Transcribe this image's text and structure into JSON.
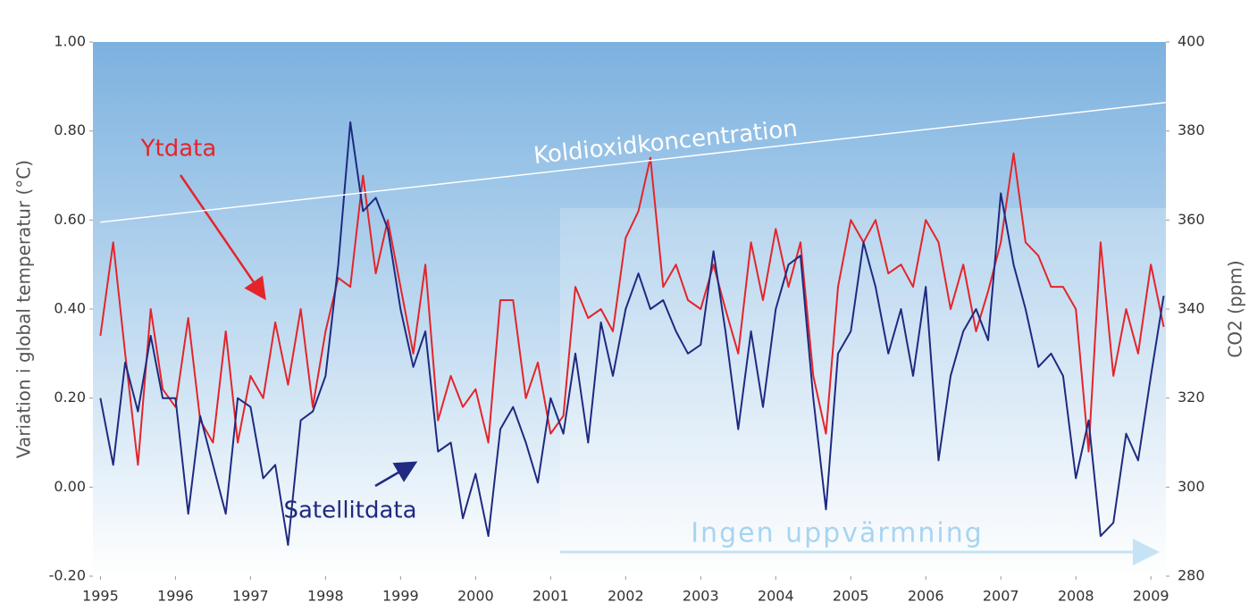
{
  "chart_data": {
    "type": "line",
    "ylabel": "Variation i global temperatur (°C)",
    "y2label": "CO2 (ppm)",
    "annotations": [
      "Ytdata",
      "Satellitdata",
      "Koldioxidkoncentration",
      "Ingen uppvärmning"
    ],
    "xlim": [
      1994.9,
      2009.2
    ],
    "xticks": [
      1995,
      1996,
      1997,
      1998,
      1999,
      2000,
      2001,
      2002,
      2003,
      2004,
      2005,
      2006,
      2007,
      2008,
      2009
    ],
    "ylim": [
      -0.2,
      1.0
    ],
    "yticks": [
      {
        "value": -0.2,
        "label": "-0.20"
      },
      {
        "value": 0,
        "label": "0.00"
      },
      {
        "value": 0.2,
        "label": "0.20"
      },
      {
        "value": 0.4,
        "label": "0.40"
      },
      {
        "value": 0.6,
        "label": "0.60"
      },
      {
        "value": 0.8,
        "label": "0.80"
      },
      {
        "value": 1.0,
        "label": "1.00"
      }
    ],
    "y2lim": [
      280,
      400
    ],
    "y2ticks": [
      280,
      300,
      320,
      340,
      360,
      380,
      400
    ],
    "grid": false,
    "x": [
      1995,
      1995.17,
      1995.33,
      1995.5,
      1995.67,
      1995.83,
      1996,
      1996.17,
      1996.33,
      1996.5,
      1996.67,
      1996.83,
      1997,
      1997.17,
      1997.33,
      1997.5,
      1997.67,
      1997.83,
      1998,
      1998.17,
      1998.33,
      1998.5,
      1998.67,
      1998.83,
      1999,
      1999.17,
      1999.33,
      1999.5,
      1999.67,
      1999.83,
      2000,
      2000.17,
      2000.33,
      2000.5,
      2000.67,
      2000.83,
      2001,
      2001.17,
      2001.33,
      2001.5,
      2001.67,
      2001.83,
      2002,
      2002.17,
      2002.33,
      2002.5,
      2002.67,
      2002.83,
      2003,
      2003.17,
      2003.33,
      2003.5,
      2003.67,
      2003.83,
      2004,
      2004.17,
      2004.33,
      2004.5,
      2004.67,
      2004.83,
      2005,
      2005.17,
      2005.33,
      2005.5,
      2005.67,
      2005.83,
      2006,
      2006.17,
      2006.33,
      2006.5,
      2006.67,
      2006.83,
      2007,
      2007.17,
      2007.33,
      2007.5,
      2007.67,
      2007.83,
      2008,
      2008.17,
      2008.33,
      2008.5,
      2008.67,
      2008.83,
      2009,
      2009.17
    ],
    "series": [
      {
        "color": "#e3252b",
        "values": [
          0.34,
          0.55,
          0.3,
          0.05,
          0.4,
          0.22,
          0.18,
          0.38,
          0.15,
          0.1,
          0.35,
          0.1,
          0.25,
          0.2,
          0.37,
          0.23,
          0.4,
          0.18,
          0.35,
          0.47,
          0.45,
          0.7,
          0.48,
          0.6,
          0.45,
          0.3,
          0.5,
          0.15,
          0.25,
          0.18,
          0.22,
          0.1,
          0.42,
          0.42,
          0.2,
          0.28,
          0.12,
          0.16,
          0.45,
          0.38,
          0.4,
          0.35,
          0.56,
          0.62,
          0.74,
          0.45,
          0.5,
          0.42,
          0.4,
          0.5,
          0.4,
          0.3,
          0.55,
          0.42,
          0.58,
          0.45,
          0.55,
          0.25,
          0.12,
          0.45,
          0.6,
          0.55,
          0.6,
          0.48,
          0.5,
          0.45,
          0.6,
          0.55,
          0.4,
          0.5,
          0.35,
          0.44,
          0.55,
          0.75,
          0.55,
          0.52,
          0.45,
          0.45,
          0.4,
          0.08,
          0.55,
          0.25,
          0.4,
          0.3,
          0.5,
          0.36
        ]
      },
      {
        "color": "#1f2a80",
        "values": [
          0.2,
          0.05,
          0.28,
          0.17,
          0.34,
          0.2,
          0.2,
          -0.06,
          0.16,
          0.05,
          -0.06,
          0.2,
          0.18,
          0.02,
          0.05,
          -0.13,
          0.15,
          0.17,
          0.25,
          0.5,
          0.82,
          0.62,
          0.65,
          0.58,
          0.4,
          0.27,
          0.35,
          0.08,
          0.1,
          -0.07,
          0.03,
          -0.11,
          0.13,
          0.18,
          0.1,
          0.01,
          0.2,
          0.12,
          0.3,
          0.1,
          0.37,
          0.25,
          0.4,
          0.48,
          0.4,
          0.42,
          0.35,
          0.3,
          0.32,
          0.53,
          0.35,
          0.13,
          0.35,
          0.18,
          0.4,
          0.5,
          0.52,
          0.2,
          -0.05,
          0.3,
          0.35,
          0.55,
          0.45,
          0.3,
          0.4,
          0.25,
          0.45,
          0.06,
          0.25,
          0.35,
          0.4,
          0.33,
          0.66,
          0.5,
          0.4,
          0.27,
          0.3,
          0.25,
          0.02,
          0.15,
          -0.11,
          -0.08,
          0.12,
          0.06,
          0.25,
          0.43
        ]
      },
      {
        "color": "#ffffff",
        "axis": "y2",
        "x": [
          1995,
          2009.2
        ],
        "values": [
          359.5,
          386.4
        ]
      }
    ]
  }
}
